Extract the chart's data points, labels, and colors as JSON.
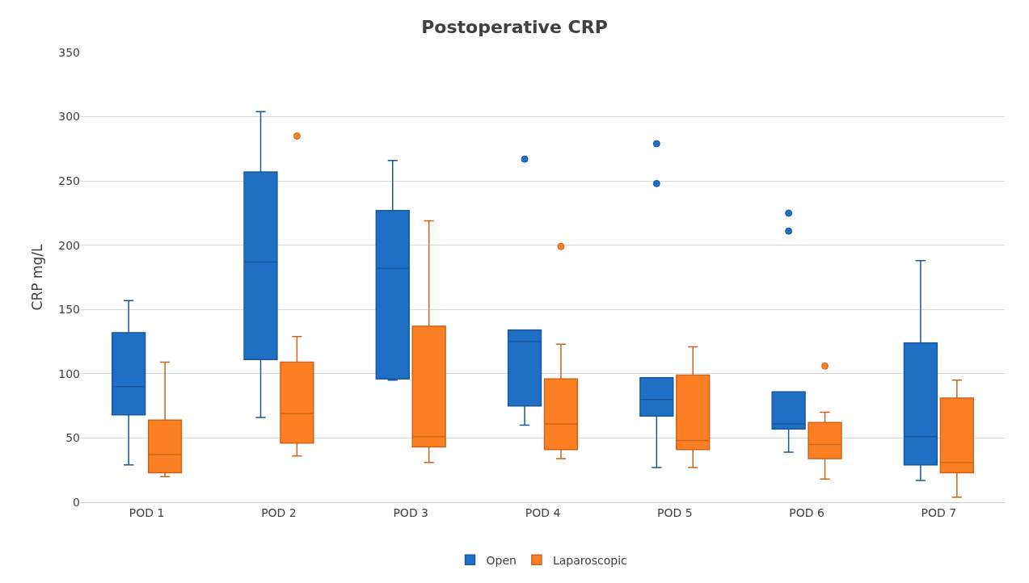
{
  "chart_data": {
    "type": "box",
    "title": "Postoperative CRP",
    "ylabel": "CRP mg/L",
    "categories": [
      "POD 1",
      "POD 2",
      "POD 3",
      "POD 4",
      "POD 5",
      "POD 6",
      "POD 7"
    ],
    "ylim": [
      0,
      350
    ],
    "yticks": [
      0,
      50,
      100,
      150,
      200,
      250,
      300,
      350
    ],
    "grid": "y",
    "legend": "bottom",
    "series": [
      {
        "name": "Open",
        "color": "#1f6fc5",
        "boxes": [
          {
            "low": 29,
            "q1": 68,
            "median": 90,
            "q3": 132,
            "high": 157
          },
          {
            "low": 66,
            "q1": 111,
            "median": 187,
            "q3": 257,
            "high": 304
          },
          {
            "low": 95,
            "q1": 96,
            "median": 182,
            "q3": 227,
            "high": 266
          },
          {
            "low": 60,
            "q1": 75,
            "median": 125,
            "q3": 134,
            "high": 134,
            "outliers": [
              267
            ]
          },
          {
            "low": 27,
            "q1": 67,
            "median": 80,
            "q3": 97,
            "high": 97,
            "outliers": [
              248,
              279
            ]
          },
          {
            "low": 39,
            "q1": 57,
            "median": 61,
            "q3": 86,
            "high": 86,
            "outliers": [
              211,
              225
            ]
          },
          {
            "low": 17,
            "q1": 29,
            "median": 51,
            "q3": 124,
            "high": 188
          }
        ]
      },
      {
        "name": "Laparoscopic",
        "color": "#fd7f23",
        "boxes": [
          {
            "low": 20,
            "q1": 23,
            "median": 37,
            "q3": 64,
            "high": 109
          },
          {
            "low": 36,
            "q1": 46,
            "median": 69,
            "q3": 109,
            "high": 129,
            "outliers": [
              285
            ]
          },
          {
            "low": 31,
            "q1": 43,
            "median": 51,
            "q3": 137,
            "high": 219
          },
          {
            "low": 34,
            "q1": 41,
            "median": 61,
            "q3": 96,
            "high": 123,
            "outliers": [
              199
            ]
          },
          {
            "low": 27,
            "q1": 41,
            "median": 48,
            "q3": 99,
            "high": 121
          },
          {
            "low": 18,
            "q1": 34,
            "median": 45,
            "q3": 62,
            "high": 70,
            "outliers": [
              106
            ]
          },
          {
            "low": 4,
            "q1": 23,
            "median": 31,
            "q3": 81,
            "high": 95
          }
        ]
      }
    ]
  }
}
